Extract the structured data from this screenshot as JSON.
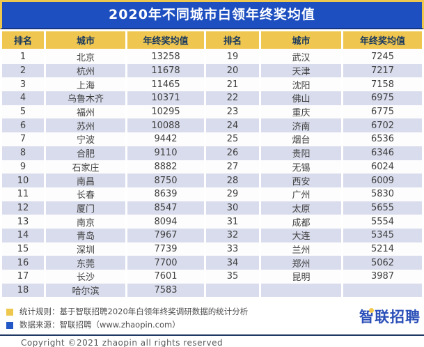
{
  "title": "2020年不同城市白领年终奖均值",
  "colors": {
    "title_bar_bg": "#1d4fc0",
    "title_text": "#ffffff",
    "header_bg": "#efc64f",
    "header_text": "#17375e",
    "row_alt_bg": "#d9dcec",
    "row_bg": "#fdfdfe",
    "body_text": "#3f3f3f",
    "outer_border_yellow": "#eec84e",
    "legend_yellow": "#eec84e",
    "legend_blue": "#2257c5",
    "rule_navy": "#1f3864",
    "logo_blue": "#2b50b8",
    "logo_dot_yellow": "#f2c94c"
  },
  "table": {
    "headers": [
      "排名",
      "城市",
      "年终奖均值",
      "排名",
      "城市",
      "年终奖均值"
    ]
  },
  "chart_data": {
    "type": "table",
    "title": "2020年不同城市白领年终奖均值",
    "columns": [
      "排名",
      "城市",
      "年终奖均值"
    ],
    "rows": [
      [
        1,
        "北京",
        13258
      ],
      [
        2,
        "杭州",
        11678
      ],
      [
        3,
        "上海",
        11465
      ],
      [
        4,
        "乌鲁木齐",
        10371
      ],
      [
        5,
        "福州",
        10295
      ],
      [
        6,
        "苏州",
        10088
      ],
      [
        7,
        "宁波",
        9442
      ],
      [
        8,
        "合肥",
        9110
      ],
      [
        9,
        "石家庄",
        8882
      ],
      [
        10,
        "南昌",
        8750
      ],
      [
        11,
        "长春",
        8639
      ],
      [
        12,
        "厦门",
        8547
      ],
      [
        13,
        "南京",
        8094
      ],
      [
        14,
        "青岛",
        7967
      ],
      [
        15,
        "深圳",
        7739
      ],
      [
        16,
        "东莞",
        7700
      ],
      [
        17,
        "长沙",
        7601
      ],
      [
        18,
        "哈尔滨",
        7583
      ],
      [
        19,
        "武汉",
        7245
      ],
      [
        20,
        "天津",
        7217
      ],
      [
        21,
        "沈阳",
        7158
      ],
      [
        22,
        "佛山",
        6975
      ],
      [
        23,
        "重庆",
        6775
      ],
      [
        24,
        "济南",
        6702
      ],
      [
        25,
        "烟台",
        6536
      ],
      [
        26,
        "贵阳",
        6346
      ],
      [
        27,
        "无锡",
        6024
      ],
      [
        28,
        "西安",
        6009
      ],
      [
        29,
        "广州",
        5830
      ],
      [
        30,
        "太原",
        5655
      ],
      [
        31,
        "成都",
        5554
      ],
      [
        32,
        "大连",
        5345
      ],
      [
        33,
        "兰州",
        5214
      ],
      [
        34,
        "郑州",
        5062
      ],
      [
        35,
        "昆明",
        3987
      ]
    ]
  },
  "footer": {
    "note1": "统计规则：基于智联招聘2020年白领年终奖调研数据的统计分析",
    "note2": "数据来源：智联招聘（www.zhaopin.com）",
    "copyright": "Copyright ©2021 zhaopin all rights reserved",
    "logo": "智联招聘"
  }
}
